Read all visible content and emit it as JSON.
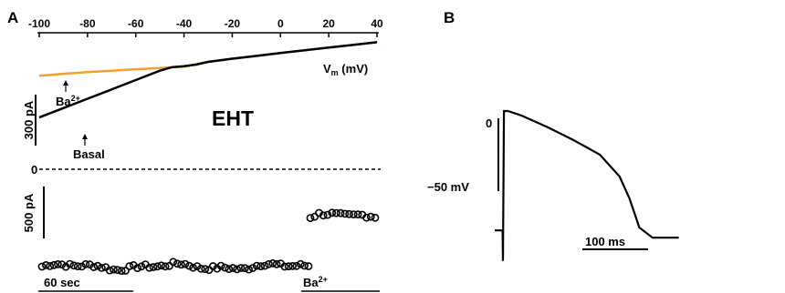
{
  "panel_a_label": "A",
  "panel_b_label": "B",
  "colors": {
    "basal": "#000000",
    "ba": "#f0a030",
    "axis": "#000000"
  },
  "chart_data": [
    {
      "type": "line",
      "title": "EHT",
      "xlabel_main": "V",
      "xlabel_sub": "m",
      "xlabel_unit": " (mV)",
      "x_ticks": [
        "-100",
        "-80",
        "-60",
        "-40",
        "-20",
        "0",
        "20",
        "40"
      ],
      "xlim": [
        -100,
        40
      ],
      "scale_bar_label": "300 pA",
      "scale_bar_pA": 300,
      "zero_label": "0",
      "annotations": [
        {
          "label_main": "Ba",
          "label_sup": "2+",
          "points_to": "Ba2+ trace"
        },
        {
          "label_main": "Basal",
          "label_sup": "",
          "points_to": "Basal trace"
        }
      ],
      "series": [
        {
          "name": "Basal",
          "x": [
            -100,
            -90,
            -80,
            -70,
            -60,
            -50,
            -45,
            -40,
            -35,
            -30,
            -20,
            -10,
            0,
            10,
            20,
            30,
            40
          ],
          "y": [
            305,
            360,
            415,
            470,
            525,
            580,
            601,
            607,
            616,
            632,
            651,
            667,
            684,
            700,
            716,
            732,
            748
          ]
        },
        {
          "name": "Ba2+",
          "x": [
            -100,
            -90,
            -80,
            -70,
            -60,
            -50,
            -40,
            -30,
            -20,
            -10,
            0,
            10,
            20,
            30,
            40
          ],
          "y": [
            550,
            562,
            572,
            580,
            589,
            596,
            604,
            632,
            651,
            668,
            684,
            700,
            716,
            732,
            748
          ]
        }
      ]
    },
    {
      "type": "scatter",
      "scale_bar_label": "500 pA",
      "time_bar_label": "60 sec",
      "event_label_main": "Ba",
      "event_label_sup": "2+",
      "phases": [
        {
          "name": "before",
          "n_points": 68,
          "mean_pA": 0,
          "spread_pA": 40
        },
        {
          "name": "after",
          "n_points": 16,
          "mean_pA": 480,
          "spread_pA": 50
        }
      ]
    },
    {
      "type": "line",
      "ylabel_zero": "0",
      "scale_bar_label": "−50 mV",
      "scale_bar_mV": 50,
      "time_bar_label": "100 ms",
      "time_bar_ms": 100,
      "trace": {
        "t_ms": [
          0,
          12,
          12.5,
          14,
          20,
          40,
          80,
          120,
          160,
          190,
          205,
          220,
          240,
          250,
          280
        ],
        "v_mV": [
          -77,
          -77,
          -98,
          5,
          5,
          2,
          -6,
          -15,
          -25,
          -40,
          -55,
          -75,
          -82,
          -82,
          -82
        ]
      }
    }
  ]
}
